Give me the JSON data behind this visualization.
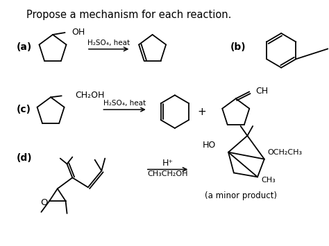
{
  "title": "Propose a mechanism for each reaction.",
  "bg_color": "#ffffff",
  "text_color": "#000000",
  "title_fontsize": 10.5,
  "label_fontsize": 10,
  "reactions": {
    "a_label": "(a)",
    "b_label": "(b)",
    "c_label": "(c)",
    "d_label": "(d)"
  },
  "arrow_reagent_a": "H₂SO₄, heat",
  "arrow_reagent_c": "H₂SO₄, heat",
  "arrow_reagent_d_top": "H⁺",
  "arrow_reagent_d_bot": "CH₃CH₂OH",
  "plus_sign": "+",
  "minor_product": "(a minor product)",
  "oh_label": "OH",
  "ch2oh_label": "CH₂OH",
  "ho_label": "HO",
  "och2ch3_label": "OCH₂CH₃",
  "ch3_label": "CH₃",
  "o_label": "O"
}
